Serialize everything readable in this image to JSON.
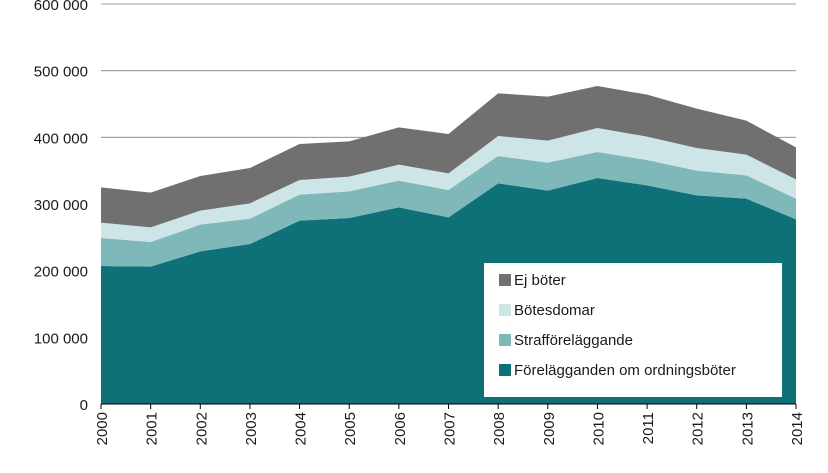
{
  "chart_data": {
    "type": "area",
    "stacked": true,
    "title": "",
    "xlabel": "",
    "ylabel": "",
    "x": [
      "2000",
      "2001",
      "2002",
      "2003",
      "2004",
      "2005",
      "2006",
      "2007",
      "2008",
      "2009",
      "2010",
      "2011",
      "2012",
      "2013",
      "2014"
    ],
    "ylim": [
      0,
      600000
    ],
    "yticks": [
      0,
      100000,
      200000,
      300000,
      400000,
      500000,
      600000
    ],
    "ytick_labels": [
      "0",
      "100 000",
      "200 000",
      "300 000",
      "400 000",
      "500 000",
      "600 000"
    ],
    "grid": "horizontal",
    "legend_position": "bottom-right",
    "series": [
      {
        "name": "Förelägganden om ordningsböter",
        "color": "#0f7178",
        "values": [
          207000,
          206000,
          229000,
          240000,
          275000,
          279000,
          295000,
          280000,
          331000,
          320000,
          339000,
          328000,
          313000,
          308000,
          277000
        ]
      },
      {
        "name": "Strafföreläggande",
        "color": "#7fb8b9",
        "values": [
          42000,
          37000,
          40000,
          38000,
          39000,
          40000,
          40000,
          41000,
          41000,
          42000,
          39000,
          38000,
          37000,
          35000,
          31000
        ]
      },
      {
        "name": "Bötesdomar",
        "color": "#cde5e6",
        "values": [
          23000,
          22000,
          21000,
          23000,
          22000,
          22000,
          24000,
          25000,
          30000,
          33000,
          36000,
          35000,
          34000,
          31000,
          29000
        ]
      },
      {
        "name": "Ej böter",
        "color": "#707070",
        "values": [
          53000,
          52000,
          52000,
          53000,
          54000,
          53000,
          56000,
          59000,
          64000,
          66000,
          63000,
          63000,
          59000,
          51000,
          48000
        ]
      }
    ],
    "legend_order": [
      "Ej böter",
      "Bötesdomar",
      "Strafföreläggande",
      "Förelägganden om ordningsböter"
    ]
  }
}
